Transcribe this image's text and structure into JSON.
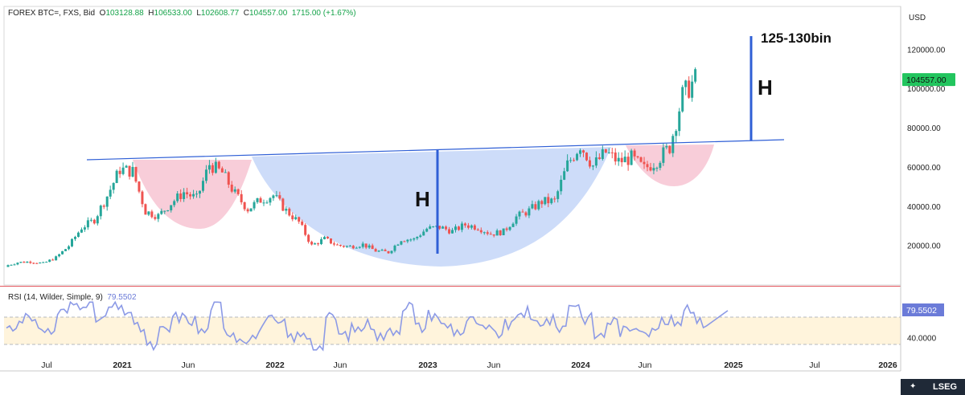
{
  "header": {
    "symbol": "FOREX BTC=, FXS, Bid",
    "open_label": "O",
    "open": "103128.88",
    "high_label": "H",
    "high": "106533.00",
    "low_label": "L",
    "low": "102608.77",
    "close_label": "C",
    "close": "104557.00",
    "change": "1715.00 (+1.67%)"
  },
  "price_axis": {
    "currency": "USD",
    "ticks": [
      "120000.00",
      "100000.00",
      "80000.00",
      "60000.00",
      "40000.00",
      "20000.00"
    ],
    "last_price_badge": "104557.00"
  },
  "rsi": {
    "label": "RSI (14, Wilder, Simple, 9)",
    "value": "79.5502",
    "badge": "79.5502",
    "tick": "40.0000"
  },
  "time_axis": {
    "labels": [
      "Jul",
      "2021",
      "Jun",
      "2022",
      "Jun",
      "2023",
      "Jun",
      "2024",
      "Jun",
      "2025",
      "Jul",
      "2026"
    ]
  },
  "annotations": {
    "target_label": "125-130bin",
    "height_label_right": "H",
    "height_label_center": "H"
  },
  "branding": {
    "text": "LSEG"
  },
  "colors": {
    "up": "#26a69a",
    "down": "#ef5350",
    "neckline": "#2f5fd6",
    "height_bar": "#2f5fd6",
    "cup_fill": "#bcd0f7",
    "shoulder_fill": "#f6c1cf",
    "rsi_line": "#8c9ae6",
    "rsi_band": "#fff4dc",
    "badge_price": "#22c55e",
    "badge_rsi": "#6b7bd8",
    "separator": "#e4575e"
  },
  "chart_data": [
    {
      "type": "candlestick",
      "series_name": "FOREX BTC=, FXS, Bid",
      "y_unit": "USD",
      "ylim": [
        0,
        135000
      ],
      "x_range": [
        "2020-05",
        "2026-02"
      ],
      "approx_monthly_close": [
        [
          "2020-06",
          9500
        ],
        [
          "2020-07",
          11300
        ],
        [
          "2020-08",
          11700
        ],
        [
          "2020-09",
          10800
        ],
        [
          "2020-10",
          13800
        ],
        [
          "2020-11",
          19700
        ],
        [
          "2020-12",
          29000
        ],
        [
          "2021-01",
          33100
        ],
        [
          "2021-02",
          45200
        ],
        [
          "2021-03",
          58800
        ],
        [
          "2021-04",
          57700
        ],
        [
          "2021-05",
          37300
        ],
        [
          "2021-06",
          35000
        ],
        [
          "2021-07",
          41500
        ],
        [
          "2021-08",
          47100
        ],
        [
          "2021-09",
          43800
        ],
        [
          "2021-10",
          61300
        ],
        [
          "2021-11",
          57000
        ],
        [
          "2021-12",
          46300
        ],
        [
          "2022-01",
          38500
        ],
        [
          "2022-02",
          43200
        ],
        [
          "2022-03",
          45500
        ],
        [
          "2022-04",
          37700
        ],
        [
          "2022-05",
          31800
        ],
        [
          "2022-06",
          19900
        ],
        [
          "2022-07",
          23300
        ],
        [
          "2022-08",
          20000
        ],
        [
          "2022-09",
          19400
        ],
        [
          "2022-10",
          20500
        ],
        [
          "2022-11",
          17200
        ],
        [
          "2022-12",
          16500
        ],
        [
          "2023-01",
          23100
        ],
        [
          "2023-02",
          23100
        ],
        [
          "2023-03",
          28500
        ],
        [
          "2023-04",
          29300
        ],
        [
          "2023-05",
          27200
        ],
        [
          "2023-06",
          30500
        ],
        [
          "2023-07",
          29200
        ],
        [
          "2023-08",
          25900
        ],
        [
          "2023-09",
          27000
        ],
        [
          "2023-10",
          34500
        ],
        [
          "2023-11",
          37700
        ],
        [
          "2023-12",
          42300
        ],
        [
          "2024-01",
          42600
        ],
        [
          "2024-02",
          61200
        ],
        [
          "2024-03",
          71300
        ],
        [
          "2024-04",
          60600
        ],
        [
          "2024-05",
          67500
        ],
        [
          "2024-06",
          62700
        ],
        [
          "2024-07",
          64600
        ],
        [
          "2024-08",
          59000
        ],
        [
          "2024-09",
          63300
        ],
        [
          "2024-10",
          70200
        ],
        [
          "2024-11",
          96400
        ],
        [
          "2024-12",
          104557
        ]
      ],
      "overlays": {
        "neckline_start": [
          "2020-12",
          64500
        ],
        "neckline_end": [
          "2025-04",
          73500
        ],
        "target_label": "125-130bin",
        "height_marker": "H"
      }
    },
    {
      "type": "line",
      "series_name": "RSI (14, Wilder, Simple, 9)",
      "last_value": 79.5502,
      "band": [
        30,
        70
      ],
      "ylim": [
        20,
        100
      ]
    }
  ]
}
